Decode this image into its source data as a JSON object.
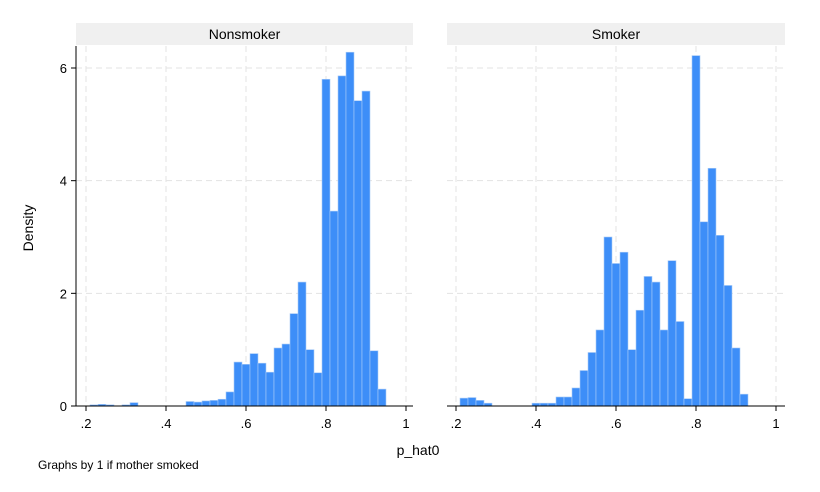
{
  "chart_data": {
    "type": "bar",
    "ylabel": "Density",
    "xlabel": "p_hat0",
    "note": "Graphs by 1 if mother smoked",
    "xlim": [
      0.2,
      1.0
    ],
    "ylim": [
      0,
      6.3
    ],
    "x_ticks": [
      ".2",
      ".4",
      ".6",
      ".8",
      "1"
    ],
    "x_tick_values": [
      0.2,
      0.4,
      0.6,
      0.8,
      1.0
    ],
    "y_ticks": [
      "0",
      "2",
      "4",
      "6"
    ],
    "y_tick_values": [
      0,
      2,
      4,
      6
    ],
    "grid": true,
    "bar_color": "#3d8ef8",
    "bar_edge_color": "#a9cbf7",
    "header_color": "#f0f0f0",
    "grid_color": "#e3e3e3",
    "panels": [
      {
        "title": "Nonsmoker",
        "bin_start": 0.21,
        "bin_width": 0.02,
        "densities": [
          0.02,
          0.03,
          0.02,
          0.0,
          0.02,
          0.06,
          0.0,
          0.0,
          0.0,
          0.0,
          0.0,
          0.0,
          0.08,
          0.07,
          0.09,
          0.1,
          0.12,
          0.25,
          0.78,
          0.74,
          0.93,
          0.76,
          0.6,
          1.03,
          1.1,
          1.64,
          2.2,
          1.0,
          0.59,
          5.8,
          3.46,
          5.86,
          6.28,
          5.42,
          5.59,
          0.98,
          0.3
        ]
      },
      {
        "title": "Smoker",
        "bin_start": 0.21,
        "bin_width": 0.02,
        "densities": [
          0.14,
          0.15,
          0.1,
          0.05,
          0.0,
          0.0,
          0.0,
          0.0,
          0.0,
          0.05,
          0.05,
          0.05,
          0.16,
          0.16,
          0.32,
          0.63,
          0.95,
          1.35,
          3.0,
          2.53,
          2.73,
          1.0,
          1.7,
          2.3,
          2.2,
          1.35,
          2.58,
          1.5,
          0.13,
          6.22,
          3.27,
          4.22,
          3.03,
          2.14,
          1.03,
          0.21
        ]
      }
    ]
  }
}
